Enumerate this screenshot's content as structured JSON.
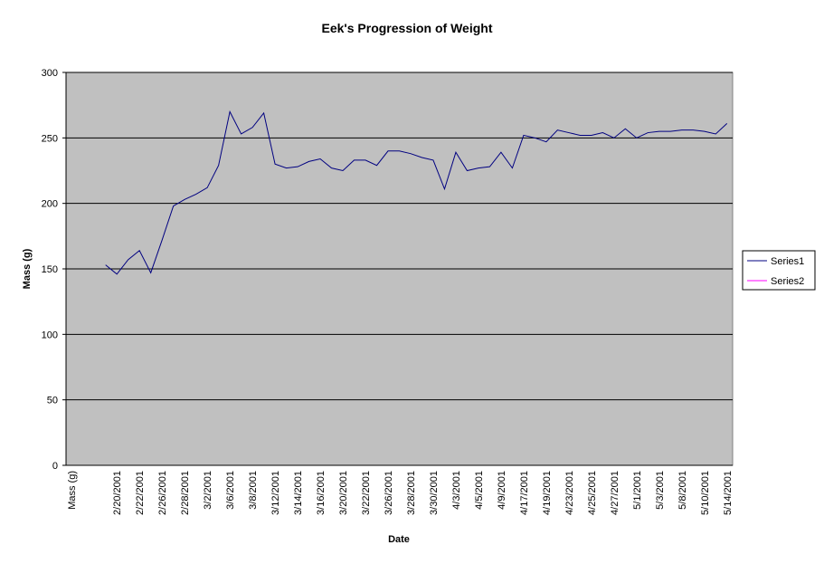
{
  "chart_data": {
    "type": "line",
    "title": "Eek's Progression of Weight",
    "x_label": "Date",
    "y_label": "Mass (g)",
    "categories": [
      "Mass (g)",
      null,
      null,
      null,
      "2/20/2001",
      null,
      "2/22/2001",
      null,
      "2/26/2001",
      null,
      "2/28/2001",
      null,
      "3/2/2001",
      null,
      "3/6/2001",
      null,
      "3/8/2001",
      null,
      "3/12/2001",
      null,
      "3/14/2001",
      null,
      "3/16/2001",
      null,
      "3/20/2001",
      null,
      "3/22/2001",
      null,
      "3/26/2001",
      null,
      "3/28/2001",
      null,
      "3/30/2001",
      null,
      "4/3/2001",
      null,
      "4/5/2001",
      null,
      "4/9/2001",
      null,
      "4/17/2001",
      null,
      "4/19/2001",
      null,
      "4/23/2001",
      null,
      "4/25/2001",
      null,
      "4/27/2001",
      null,
      "5/1/2001",
      null,
      "5/3/2001",
      null,
      "5/8/2001",
      null,
      "5/10/2001",
      null,
      "5/14/2001"
    ],
    "series": [
      {
        "name": "Series1",
        "color": "#000080",
        "values": [
          null,
          null,
          null,
          153,
          146,
          157,
          164,
          147,
          172,
          198,
          203,
          207,
          212,
          229,
          270,
          253,
          258,
          269,
          230,
          227,
          228,
          232,
          234,
          227,
          225,
          233,
          233,
          229,
          240,
          240,
          238,
          235,
          233,
          211,
          239,
          225,
          227,
          228,
          239,
          227,
          252,
          250,
          247,
          256,
          254,
          252,
          252,
          254,
          250,
          257,
          250,
          254,
          255,
          255,
          256,
          256,
          255,
          253,
          261
        ]
      },
      {
        "name": "Series2",
        "color": "#ff00ff",
        "values": [
          null,
          null,
          null,
          null,
          null,
          null,
          null,
          null,
          null,
          null,
          null,
          null,
          null,
          null,
          null,
          null,
          null,
          null,
          null,
          null,
          null,
          null,
          null,
          null,
          null,
          null,
          null,
          null,
          null,
          null,
          null,
          null,
          null,
          null,
          null,
          null,
          null,
          null,
          null,
          null,
          null,
          null,
          null,
          null,
          null,
          null,
          null,
          null,
          null,
          null,
          null,
          null,
          null,
          null,
          null,
          null,
          null,
          null,
          null
        ]
      }
    ],
    "ylim": [
      0,
      300
    ],
    "yticks": [
      0,
      50,
      100,
      150,
      200,
      250,
      300
    ],
    "grid": true,
    "legend": "right"
  }
}
